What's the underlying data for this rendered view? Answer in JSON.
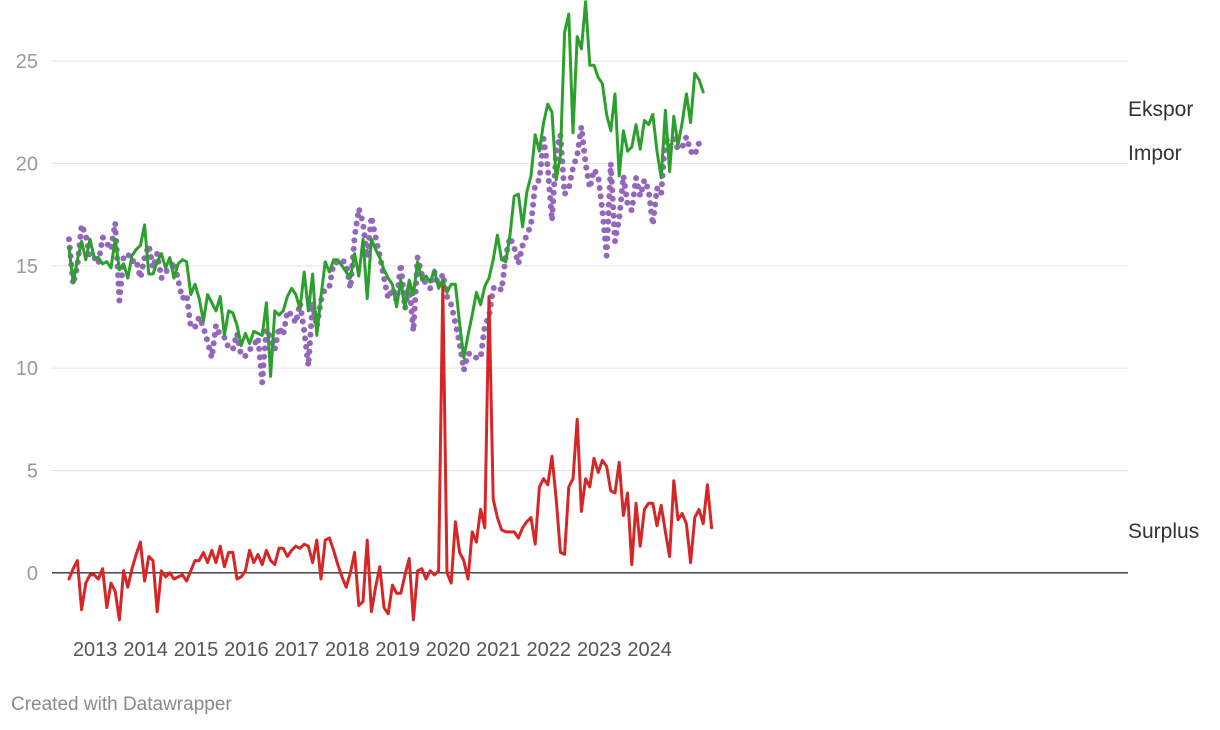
{
  "footer": "Created with Datawrapper",
  "chart_data": {
    "type": "line",
    "x_start": "2012-07",
    "x_step": "month",
    "x_ticks": [
      "2013",
      "2014",
      "2015",
      "2016",
      "2017",
      "2018",
      "2019",
      "2020",
      "2021",
      "2022",
      "2023",
      "2024"
    ],
    "ylim": [
      -2.5,
      27.5
    ],
    "y_ticks": [
      0,
      5,
      10,
      15,
      20,
      25
    ],
    "grid": true,
    "series": [
      {
        "name": "Ekspor",
        "color": "#2ca02c",
        "style": "solid",
        "values": [
          15.9,
          14.2,
          15.3,
          16.2,
          15.3,
          16.3,
          15.4,
          15.4,
          15.1,
          15.2,
          14.9,
          16.3,
          14.8,
          15.1,
          14.4,
          15.5,
          15.8,
          16.0,
          17.0,
          14.6,
          14.6,
          15.2,
          15.6,
          14.9,
          15.4,
          14.4,
          15.1,
          15.3,
          15.2,
          13.6,
          14.1,
          13.4,
          12.3,
          13.6,
          13.2,
          12.8,
          13.5,
          11.6,
          12.8,
          12.7,
          12.1,
          11.1,
          11.7,
          11.2,
          11.8,
          11.7,
          11.6,
          13.2,
          9.6,
          12.8,
          12.6,
          12.8,
          13.5,
          13.9,
          13.6,
          12.9,
          14.7,
          12.8,
          14.6,
          11.6,
          13.5,
          15.2,
          14.7,
          15.3,
          15.3,
          15.0,
          14.7,
          14.4,
          15.6,
          14.5,
          16.3,
          13.4,
          16.3,
          15.8,
          15.4,
          14.8,
          14.4,
          14.1,
          13.0,
          14.3,
          12.9,
          14.3,
          13.6,
          15.2,
          14.3,
          14.5,
          14.2,
          14.8,
          13.9,
          14.3,
          13.7,
          14.1,
          14.1,
          12.2,
          10.5,
          11.6,
          12.6,
          13.7,
          13.1,
          14.0,
          14.4,
          15.3,
          16.5,
          15.3,
          15.2,
          16.5,
          18.4,
          18.5,
          16.9,
          18.6,
          19.4,
          21.4,
          20.6,
          22.0,
          22.9,
          22.5,
          19.2,
          20.4,
          26.4,
          27.3,
          21.5,
          26.2,
          25.6,
          27.9,
          24.8,
          24.8,
          24.2,
          23.9,
          22.4,
          21.6,
          23.4,
          19.4,
          21.6,
          20.6,
          20.8,
          21.9,
          20.7,
          22.1,
          21.9,
          22.4,
          20.6,
          19.3,
          22.6,
          19.6,
          22.3,
          20.9,
          22.0,
          23.4,
          22.0,
          24.4,
          24.1,
          23.5
        ]
      },
      {
        "name": "Impor",
        "color": "#9467bd",
        "style": "dotted",
        "values": [
          16.3,
          14.1,
          15.0,
          17.0,
          16.5,
          15.4,
          15.4,
          15.1,
          16.4,
          16.1,
          15.8,
          17.1,
          13.3,
          15.4,
          15.6,
          15.2,
          15.3,
          14.4,
          15.4,
          16.0,
          14.9,
          15.6,
          14.4,
          14.7,
          14.9,
          15.2,
          14.3,
          13.4,
          13.6,
          12.0,
          12.0,
          12.5,
          12.0,
          11.3,
          10.5,
          12.1,
          11.6,
          11.5,
          11.0,
          10.9,
          11.7,
          10.6,
          10.6,
          10.9,
          11.1,
          11.5,
          9.3,
          11.9,
          11.5,
          10.9,
          12.0,
          11.6,
          12.8,
          12.6,
          12.2,
          13.2,
          11.8,
          10.1,
          13.2,
          12.0,
          13.3,
          13.9,
          14.0,
          15.1,
          15.2,
          15.3,
          15.1,
          13.9,
          16.4,
          17.8,
          17.1,
          15.4,
          17.4,
          16.4,
          15.5,
          14.4,
          13.4,
          13.9,
          13.3,
          15.1,
          12.9,
          14.1,
          11.8,
          15.4,
          14.6,
          14.1,
          13.9,
          14.7,
          14.0,
          14.6,
          13.5,
          13.1,
          12.2,
          11.2,
          9.9,
          10.7,
          10.7,
          10.5,
          10.5,
          12.1,
          12.5,
          13.9,
          14.0,
          13.8,
          15.5,
          16.4,
          15.9,
          15.1,
          16.0,
          16.5,
          17.0,
          19.0,
          19.2,
          21.2,
          19.8,
          17.2,
          20.6,
          21.4,
          18.5,
          18.8,
          19.8,
          20.4,
          21.8,
          20.0,
          18.8,
          19.7,
          19.4,
          17.7,
          15.5,
          20.0,
          16.2,
          17.3,
          19.4,
          18.0,
          17.7,
          19.3,
          18.4,
          19.2,
          18.7,
          17.0,
          18.8,
          18.5,
          21.3,
          20.8,
          21.2,
          20.7,
          20.8,
          21.3,
          20.6,
          20.4,
          21.0
        ]
      },
      {
        "name": "Surplus",
        "color": "#d62728",
        "style": "solid",
        "values": [
          -0.3,
          0.2,
          0.6,
          -1.8,
          -0.5,
          -0.1,
          -0.1,
          -0.3,
          0.2,
          -1.7,
          -0.5,
          -0.9,
          -2.3,
          0.1,
          -0.7,
          0.2,
          0.9,
          1.5,
          -0.4,
          0.8,
          0.6,
          -1.9,
          0.1,
          -0.2,
          0.0,
          -0.3,
          -0.2,
          -0.1,
          -0.4,
          0.1,
          0.6,
          0.6,
          1.0,
          0.5,
          1.1,
          0.5,
          1.3,
          0.3,
          1.0,
          1.0,
          -0.3,
          -0.2,
          0.1,
          1.1,
          0.5,
          0.9,
          0.4,
          1.1,
          0.6,
          0.4,
          1.2,
          1.2,
          0.8,
          1.1,
          1.3,
          1.2,
          1.4,
          1.3,
          0.5,
          1.6,
          -0.3,
          1.6,
          1.7,
          1.1,
          0.4,
          -0.2,
          -0.7,
          0.0,
          1.0,
          -1.6,
          -1.4,
          1.6,
          -1.9,
          -0.7,
          0.3,
          -1.7,
          -2.0,
          -0.6,
          -1.0,
          -1.0,
          -0.1,
          0.7,
          -2.3,
          0.1,
          0.2,
          -0.3,
          0.1,
          -0.1,
          0.1,
          14.0,
          0.0,
          -0.5,
          2.5,
          1.0,
          0.6,
          -0.3,
          2.0,
          1.5,
          3.1,
          2.2,
          13.5,
          3.6,
          2.7,
          2.1,
          2.0,
          2.0,
          2.0,
          1.7,
          2.2,
          2.5,
          2.7,
          1.4,
          4.2,
          4.6,
          4.3,
          5.7,
          3.6,
          1.0,
          0.9,
          4.2,
          4.6,
          7.5,
          3.0,
          4.6,
          4.2,
          5.6,
          4.9,
          5.5,
          5.2,
          4.0,
          3.9,
          5.4,
          2.8,
          3.9,
          0.4,
          3.4,
          1.3,
          3.1,
          3.4,
          3.4,
          2.3,
          3.3,
          2.0,
          0.8,
          4.5,
          2.6,
          2.9,
          2.4,
          0.5,
          2.7,
          3.1,
          2.4,
          4.3,
          2.2
        ]
      }
    ]
  }
}
